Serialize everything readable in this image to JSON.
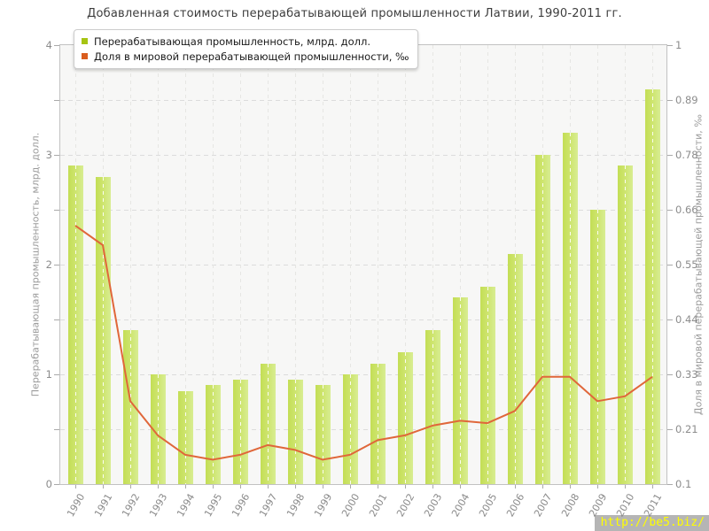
{
  "title": "Добавленная стоимость перерабатывающей промышленности Латвии, 1990-2011 гг.",
  "watermark": "http://be5.biz/",
  "legend": [
    {
      "label": "Перерабатывающая промышленность, млрд. долл.",
      "color": "#a6c412"
    },
    {
      "label": "Доля в мировой перерабатывающей промышленности, ‰",
      "color": "#d95d1e"
    }
  ],
  "chart_data": {
    "type": "bar",
    "subtype": "bar+line combo, dual axis",
    "title": "Добавленная стоимость перерабатывающей промышленности Латвии, 1990-2011 гг.",
    "categories": [
      "1990",
      "1991",
      "1992",
      "1993",
      "1994",
      "1995",
      "1996",
      "1997",
      "1998",
      "1999",
      "2000",
      "2001",
      "2002",
      "2003",
      "2004",
      "2005",
      "2006",
      "2007",
      "2008",
      "2009",
      "2010",
      "2011"
    ],
    "series": [
      {
        "name": "Перерабатывающая промышленность, млрд. долл.",
        "type": "bar",
        "axis": "left",
        "color": "#cde46c",
        "values": [
          2.9,
          2.8,
          1.4,
          1.0,
          0.85,
          0.9,
          0.95,
          1.1,
          0.95,
          0.9,
          1.0,
          1.1,
          1.2,
          1.4,
          1.7,
          1.8,
          2.1,
          3.0,
          3.2,
          2.5,
          2.9,
          3.6
        ]
      },
      {
        "name": "Доля в мировой перерабатывающей промышленности, ‰",
        "type": "line",
        "axis": "right",
        "color": "#e0673a",
        "values": [
          0.63,
          0.59,
          0.27,
          0.2,
          0.16,
          0.15,
          0.16,
          0.18,
          0.17,
          0.15,
          0.16,
          0.19,
          0.2,
          0.22,
          0.23,
          0.225,
          0.25,
          0.32,
          0.32,
          0.27,
          0.28,
          0.32
        ]
      }
    ],
    "left_axis": {
      "label": "Перерабатывающая промышленность, млрд. долл.",
      "range": [
        0,
        4
      ],
      "tick_labels": [
        "4",
        "3",
        "2",
        "1",
        "0"
      ],
      "minor_tick_step": 0.5
    },
    "right_axis": {
      "label": "Доля в мировой перерабатывающей промышленности, ‰",
      "range": [
        0.1,
        1
      ],
      "tick_labels": [
        "1",
        "0.89",
        "0.78",
        "0.66",
        "0.55",
        "0.44",
        "0.33",
        "0.21",
        "0.1"
      ]
    },
    "grid": "dashed, horizontal every 0.5 (left axis), vertical at each year",
    "legend_position": "top-left inside plot"
  }
}
